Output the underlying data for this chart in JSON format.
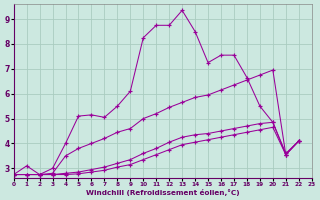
{
  "xlabel": "Windchill (Refroidissement éolien,°C)",
  "background_color": "#cce8e0",
  "grid_color": "#aaccc0",
  "line_color": "#990099",
  "xlim": [
    0,
    23
  ],
  "ylim": [
    2.6,
    9.6
  ],
  "xticks": [
    0,
    1,
    2,
    3,
    4,
    5,
    6,
    7,
    8,
    9,
    10,
    11,
    12,
    13,
    14,
    15,
    16,
    17,
    18,
    19,
    20,
    21,
    22,
    23
  ],
  "yticks": [
    3,
    4,
    5,
    6,
    7,
    8,
    9
  ],
  "series": [
    {
      "x": [
        0,
        1,
        2,
        3,
        4,
        5,
        6,
        7,
        8,
        9,
        10,
        11,
        12,
        13,
        14,
        15,
        16,
        17,
        18,
        19,
        20,
        21,
        22
      ],
      "y": [
        2.75,
        3.1,
        2.75,
        3.0,
        4.0,
        5.1,
        5.15,
        5.05,
        5.5,
        6.1,
        8.25,
        8.75,
        8.75,
        9.35,
        8.5,
        7.25,
        7.55,
        7.55,
        6.65,
        5.5,
        4.85,
        3.6,
        4.1
      ]
    },
    {
      "x": [
        0,
        1,
        2,
        3,
        4,
        5,
        6,
        7,
        8,
        9,
        10,
        11,
        12,
        13,
        14,
        15,
        16,
        17,
        18,
        19,
        20,
        21,
        22
      ],
      "y": [
        2.75,
        2.75,
        2.75,
        2.8,
        3.5,
        3.8,
        4.0,
        4.2,
        4.45,
        4.6,
        5.0,
        5.2,
        5.45,
        5.65,
        5.85,
        5.95,
        6.15,
        6.35,
        6.55,
        6.75,
        6.95,
        3.55,
        4.1
      ]
    },
    {
      "x": [
        0,
        1,
        2,
        3,
        4,
        5,
        6,
        7,
        8,
        9,
        10,
        11,
        12,
        13,
        14,
        15,
        16,
        17,
        18,
        19,
        20,
        21,
        22
      ],
      "y": [
        2.75,
        2.75,
        2.75,
        2.75,
        2.8,
        2.85,
        2.95,
        3.05,
        3.2,
        3.35,
        3.6,
        3.8,
        4.05,
        4.25,
        4.35,
        4.4,
        4.5,
        4.6,
        4.7,
        4.8,
        4.85,
        3.55,
        4.1
      ]
    },
    {
      "x": [
        0,
        1,
        2,
        3,
        4,
        5,
        6,
        7,
        8,
        9,
        10,
        11,
        12,
        13,
        14,
        15,
        16,
        17,
        18,
        19,
        20,
        21,
        22
      ],
      "y": [
        2.75,
        2.75,
        2.75,
        2.75,
        2.75,
        2.78,
        2.85,
        2.92,
        3.05,
        3.15,
        3.35,
        3.55,
        3.75,
        3.95,
        4.05,
        4.15,
        4.25,
        4.35,
        4.45,
        4.55,
        4.65,
        3.55,
        4.1
      ]
    }
  ]
}
